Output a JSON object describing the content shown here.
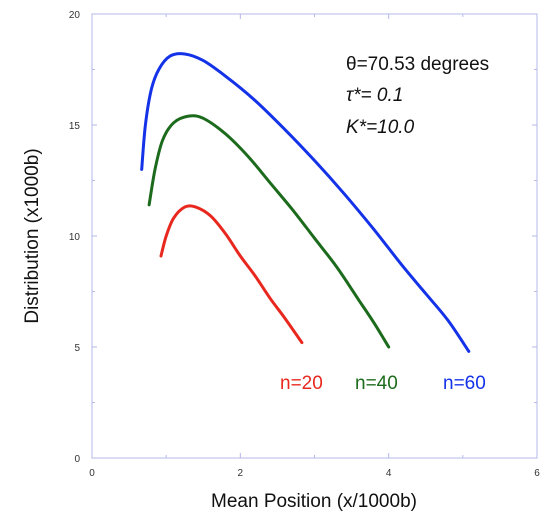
{
  "chart_data": {
    "type": "line",
    "title": "",
    "xlabel": "Mean Position (x/1000b)",
    "ylabel": "Distribution (x1000b)",
    "xlim": [
      0,
      6
    ],
    "ylim": [
      0,
      20
    ],
    "xticks": [
      "0",
      "2",
      "4",
      "6"
    ],
    "yticks": [
      "0",
      "5",
      "10",
      "15",
      "20"
    ],
    "grid": false,
    "annotations": [
      "θ=70.53 degrees",
      "τ*= 0.1",
      "K*=10.0"
    ],
    "series": [
      {
        "name": "n=20",
        "color": "#e8281e",
        "x": [
          0.93,
          1.0,
          1.1,
          1.25,
          1.4,
          1.6,
          1.8,
          2.0,
          2.2,
          2.4,
          2.6,
          2.83
        ],
        "y": [
          9.1,
          10.0,
          10.8,
          11.3,
          11.3,
          10.9,
          10.1,
          9.1,
          8.2,
          7.2,
          6.3,
          5.2
        ]
      },
      {
        "name": "n=40",
        "color": "#1c6b1c",
        "x": [
          0.77,
          0.85,
          0.95,
          1.1,
          1.3,
          1.5,
          1.8,
          2.1,
          2.4,
          2.7,
          3.0,
          3.3,
          3.6,
          3.8,
          4.0
        ],
        "y": [
          11.4,
          13.0,
          14.3,
          15.1,
          15.4,
          15.3,
          14.6,
          13.6,
          12.4,
          11.2,
          9.9,
          8.6,
          7.1,
          6.1,
          5.0
        ]
      },
      {
        "name": "n=60",
        "color": "#1432e8",
        "x": [
          0.67,
          0.72,
          0.8,
          0.9,
          1.05,
          1.25,
          1.5,
          1.8,
          2.2,
          2.6,
          3.0,
          3.4,
          3.8,
          4.2,
          4.5,
          4.8,
          5.08
        ],
        "y": [
          13.0,
          15.0,
          16.6,
          17.5,
          18.1,
          18.2,
          17.9,
          17.2,
          16.1,
          14.8,
          13.4,
          11.9,
          10.3,
          8.6,
          7.4,
          6.2,
          4.8
        ]
      }
    ]
  },
  "colors": {
    "axis": "#b3b9ea",
    "text": "#111111"
  }
}
